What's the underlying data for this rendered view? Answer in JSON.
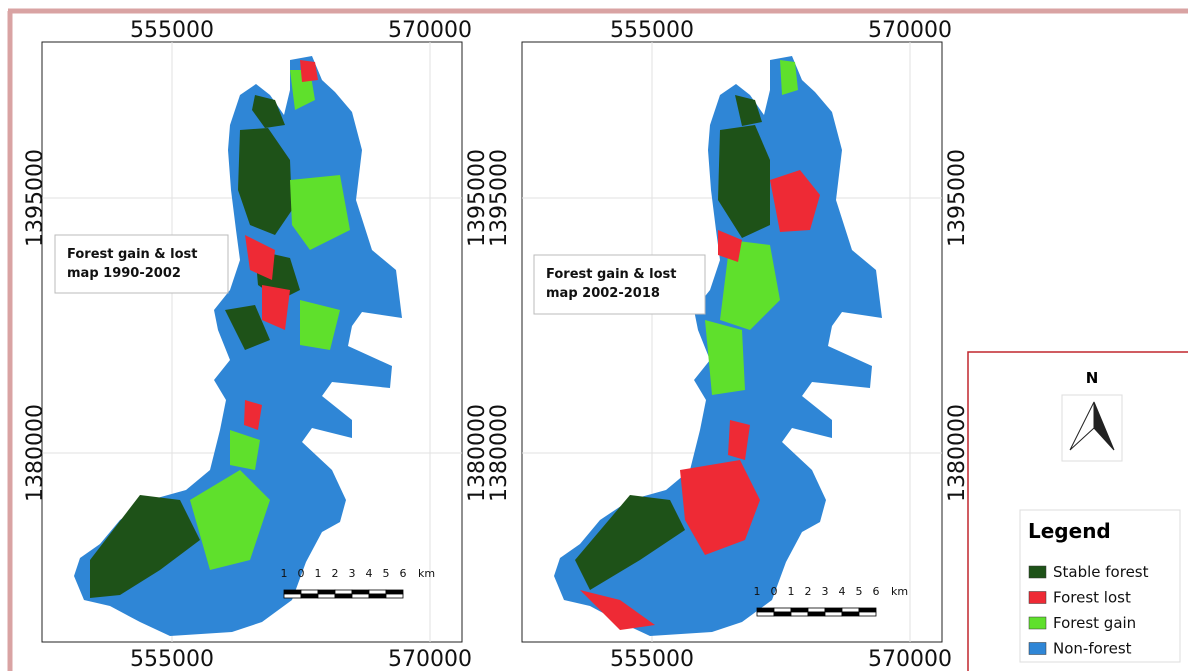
{
  "maps": [
    {
      "title_lines": [
        "Forest gain & lost",
        "map 1990-2002"
      ],
      "x_labels": [
        "555000",
        "570000"
      ],
      "y_labels": [
        "1395000",
        "1380000"
      ],
      "scale_labels": [
        "1",
        "0",
        "1",
        "2",
        "3",
        "4",
        "5",
        "6",
        "km"
      ]
    },
    {
      "title_lines": [
        "Forest gain & lost",
        "map 2002-2018"
      ],
      "x_labels": [
        "555000",
        "570000"
      ],
      "y_labels": [
        "1395000",
        "1380000"
      ],
      "scale_labels": [
        "1",
        "0",
        "1",
        "2",
        "3",
        "4",
        "5",
        "6",
        "km"
      ]
    }
  ],
  "north": "N",
  "legend": {
    "title": "Legend",
    "items": [
      {
        "label": "Stable forest",
        "color": "#1e5218"
      },
      {
        "label": "Forest lost",
        "color": "#ee2a35"
      },
      {
        "label": "Forest gain",
        "color": "#5fe02c"
      },
      {
        "label": "Non-forest",
        "color": "#2f86d6"
      }
    ]
  }
}
